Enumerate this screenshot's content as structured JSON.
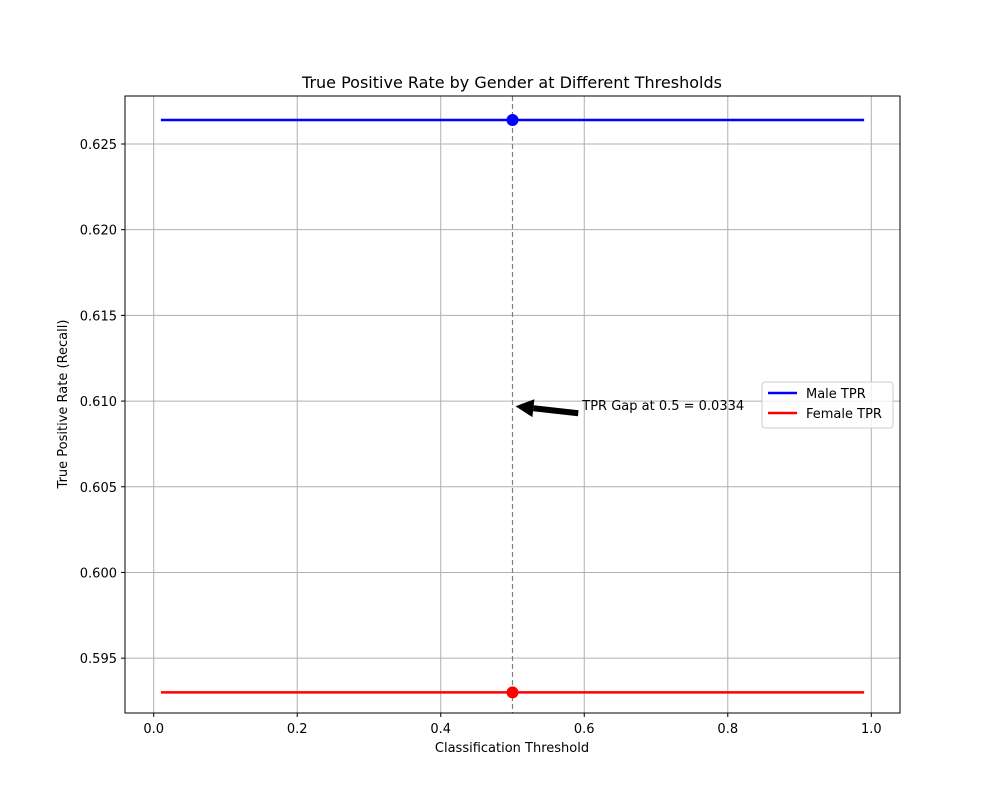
{
  "chart_data": {
    "type": "line",
    "title": "True Positive Rate by Gender at Different Thresholds",
    "xlabel": "Classification Threshold",
    "ylabel": "True Positive Rate (Recall)",
    "xlim": [
      -0.04,
      1.04
    ],
    "ylim": [
      0.5918,
      0.6278
    ],
    "xticks": [
      0.0,
      0.2,
      0.4,
      0.6,
      0.8,
      1.0
    ],
    "xtick_labels": [
      "0.0",
      "0.2",
      "0.4",
      "0.6",
      "0.8",
      "1.0"
    ],
    "yticks": [
      0.595,
      0.6,
      0.605,
      0.61,
      0.615,
      0.62,
      0.625
    ],
    "ytick_labels": [
      "0.595",
      "0.600",
      "0.605",
      "0.610",
      "0.615",
      "0.620",
      "0.625"
    ],
    "grid": true,
    "legend_position": "center-right",
    "series": [
      {
        "name": "Male TPR",
        "color": "#0000ff",
        "x": [
          0.01,
          0.99
        ],
        "y": [
          0.6264,
          0.6264
        ],
        "marker": {
          "x": 0.5,
          "y": 0.6264
        }
      },
      {
        "name": "Female TPR",
        "color": "#ff0000",
        "x": [
          0.01,
          0.99
        ],
        "y": [
          0.593,
          0.593
        ],
        "marker": {
          "x": 0.5,
          "y": 0.593
        }
      }
    ],
    "vline": {
      "x": 0.5,
      "color": "#808080",
      "style": "dashed"
    },
    "annotation": {
      "text": "TPR Gap at 0.5 = 0.0334",
      "text_xy": [
        0.6,
        0.6097
      ],
      "arrow_target": [
        0.5,
        0.6097
      ]
    }
  }
}
